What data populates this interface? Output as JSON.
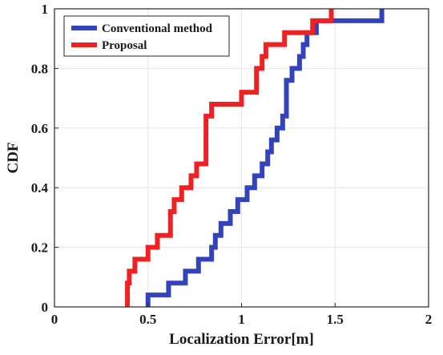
{
  "chart_data": {
    "type": "line",
    "step": true,
    "title": "",
    "xlabel": "Localization Error[m]",
    "ylabel": "CDF",
    "xlim": [
      0,
      2
    ],
    "ylim": [
      0,
      1
    ],
    "xticks": [
      0,
      0.5,
      1,
      1.5,
      2
    ],
    "xtick_labels": [
      "0",
      "0.5",
      "1",
      "1.5",
      "2"
    ],
    "yticks": [
      0,
      0.2,
      0.4,
      0.6,
      0.8,
      1
    ],
    "ytick_labels": [
      "0",
      "0.2",
      "0.4",
      "0.6",
      "0.8",
      "1"
    ],
    "grid": true,
    "legend_position": "top-left",
    "series": [
      {
        "name": "Conventional method",
        "color": "#3344bb",
        "x": [
          0.5,
          0.5,
          0.61,
          0.61,
          0.7,
          0.7,
          0.77,
          0.77,
          0.84,
          0.84,
          0.86,
          0.86,
          0.89,
          0.89,
          0.94,
          0.94,
          0.98,
          0.98,
          1.03,
          1.03,
          1.07,
          1.07,
          1.11,
          1.11,
          1.14,
          1.14,
          1.16,
          1.16,
          1.19,
          1.19,
          1.22,
          1.22,
          1.24,
          1.24,
          1.27,
          1.27,
          1.31,
          1.31,
          1.33,
          1.33,
          1.35,
          1.35,
          1.4,
          1.4,
          1.61,
          1.61,
          1.75,
          1.75
        ],
        "y": [
          0.0,
          0.04,
          0.04,
          0.08,
          0.08,
          0.12,
          0.12,
          0.16,
          0.16,
          0.2,
          0.2,
          0.24,
          0.24,
          0.28,
          0.28,
          0.32,
          0.32,
          0.36,
          0.36,
          0.4,
          0.4,
          0.44,
          0.44,
          0.48,
          0.48,
          0.52,
          0.52,
          0.56,
          0.56,
          0.6,
          0.6,
          0.64,
          0.64,
          0.76,
          0.76,
          0.8,
          0.8,
          0.84,
          0.84,
          0.88,
          0.88,
          0.92,
          0.92,
          0.96,
          0.96,
          0.96,
          0.96,
          1.0
        ]
      },
      {
        "name": "Proposal",
        "color": "#ee2222",
        "x": [
          0.39,
          0.39,
          0.4,
          0.4,
          0.43,
          0.43,
          0.5,
          0.5,
          0.55,
          0.55,
          0.62,
          0.62,
          0.64,
          0.64,
          0.68,
          0.68,
          0.73,
          0.73,
          0.76,
          0.76,
          0.81,
          0.81,
          0.84,
          0.84,
          1.0,
          1.0,
          1.08,
          1.08,
          1.11,
          1.11,
          1.13,
          1.13,
          1.23,
          1.23,
          1.38,
          1.38,
          1.48,
          1.48
        ],
        "y": [
          0.0,
          0.08,
          0.08,
          0.12,
          0.12,
          0.16,
          0.16,
          0.2,
          0.2,
          0.24,
          0.24,
          0.32,
          0.32,
          0.36,
          0.36,
          0.4,
          0.4,
          0.44,
          0.44,
          0.48,
          0.48,
          0.64,
          0.64,
          0.68,
          0.68,
          0.72,
          0.72,
          0.8,
          0.8,
          0.84,
          0.84,
          0.88,
          0.88,
          0.92,
          0.92,
          0.96,
          0.96,
          1.0
        ]
      }
    ]
  }
}
